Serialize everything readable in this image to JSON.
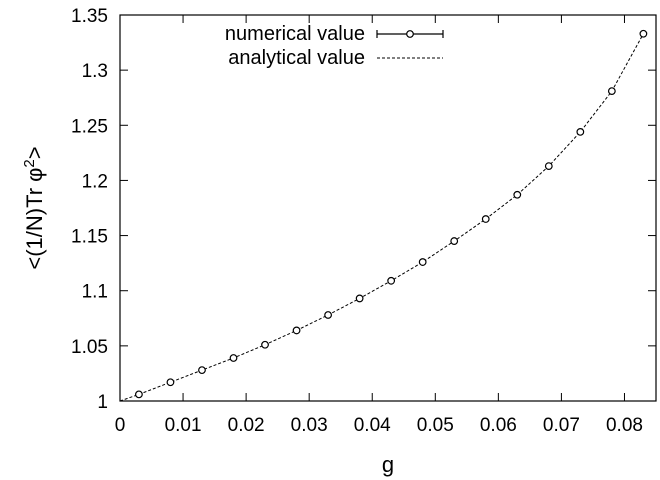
{
  "chart_data": {
    "type": "scatter",
    "title": "",
    "xlabel": "g",
    "ylabel": "<(1/N)Tr φ",
    "ylabel_superscript": "2",
    "ylabel_suffix": ">",
    "xlim": [
      0,
      0.085
    ],
    "ylim": [
      1,
      1.35
    ],
    "xticks": [
      "0",
      "0.01",
      "0.02",
      "0.03",
      "0.04",
      "0.05",
      "0.06",
      "0.07",
      "0.08"
    ],
    "yticks": [
      "1",
      "1.05",
      "1.1",
      "1.15",
      "1.2",
      "1.25",
      "1.3",
      "1.35"
    ],
    "legend_position": "top",
    "grid": false,
    "series": [
      {
        "name": "numerical value",
        "kind": "points-with-errorbars",
        "x": [
          0.003,
          0.008,
          0.013,
          0.018,
          0.023,
          0.028,
          0.033,
          0.038,
          0.043,
          0.048,
          0.053,
          0.058,
          0.063,
          0.068,
          0.073,
          0.078,
          0.083
        ],
        "y": [
          1.006,
          1.017,
          1.028,
          1.039,
          1.051,
          1.064,
          1.078,
          1.093,
          1.109,
          1.126,
          1.145,
          1.165,
          1.187,
          1.213,
          1.244,
          1.281,
          1.333
        ]
      },
      {
        "name": "analytical value",
        "kind": "dashed-line",
        "x": [
          0,
          0.003,
          0.008,
          0.013,
          0.018,
          0.023,
          0.028,
          0.033,
          0.038,
          0.043,
          0.048,
          0.053,
          0.058,
          0.063,
          0.068,
          0.073,
          0.078,
          0.083
        ],
        "y": [
          1.0,
          1.006,
          1.017,
          1.028,
          1.039,
          1.051,
          1.064,
          1.078,
          1.093,
          1.109,
          1.126,
          1.145,
          1.165,
          1.187,
          1.213,
          1.244,
          1.281,
          1.333
        ]
      }
    ]
  }
}
